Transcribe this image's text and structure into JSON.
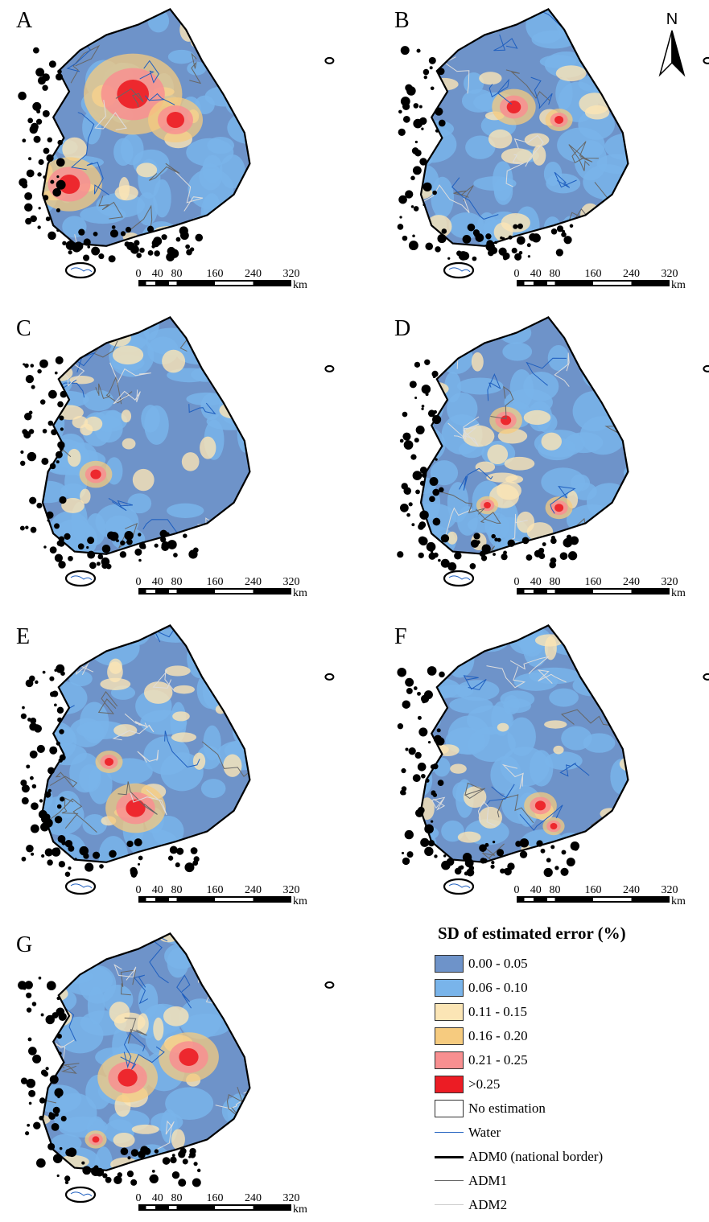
{
  "panels": [
    {
      "label": "A",
      "scheme": [
        "#6e93c9",
        "#79b4ea",
        "#fbe5b5",
        "#f6cb7f",
        "#f88f90",
        "#ec1c24"
      ],
      "hot": [
        [
          0.44,
          0.35,
          1.8
        ],
        [
          0.2,
          0.7,
          1.2
        ],
        [
          0.6,
          0.45,
          1.0
        ]
      ]
    },
    {
      "label": "B",
      "scheme": [
        "#6e93c9",
        "#79b4ea",
        "#fbe5b5",
        "#f6cb7f",
        "#f88f90",
        "#ec1c24"
      ],
      "hot": [
        [
          0.45,
          0.4,
          0.8
        ],
        [
          0.62,
          0.45,
          0.5
        ]
      ]
    },
    {
      "label": "C",
      "scheme": [
        "#6e93c9",
        "#79b4ea",
        "#fbe5b5",
        "#f6cb7f",
        "#f88f90",
        "#ec1c24"
      ],
      "hot": [
        [
          0.3,
          0.63,
          0.6
        ]
      ]
    },
    {
      "label": "D",
      "scheme": [
        "#6e93c9",
        "#79b4ea",
        "#fbe5b5",
        "#f6cb7f",
        "#f88f90",
        "#ec1c24"
      ],
      "hot": [
        [
          0.42,
          0.42,
          0.6
        ],
        [
          0.62,
          0.76,
          0.5
        ],
        [
          0.35,
          0.75,
          0.4
        ]
      ]
    },
    {
      "label": "E",
      "scheme": [
        "#6e93c9",
        "#79b4ea",
        "#fbe5b5",
        "#f6cb7f",
        "#f88f90",
        "#ec1c24"
      ],
      "hot": [
        [
          0.45,
          0.73,
          1.1
        ],
        [
          0.35,
          0.55,
          0.5
        ]
      ]
    },
    {
      "label": "F",
      "scheme": [
        "#6e93c9",
        "#79b4ea",
        "#fbe5b5",
        "#f6cb7f",
        "#f88f90",
        "#ec1c24"
      ],
      "hot": [
        [
          0.55,
          0.72,
          0.6
        ],
        [
          0.6,
          0.8,
          0.4
        ]
      ]
    },
    {
      "label": "G",
      "scheme": [
        "#6e93c9",
        "#79b4ea",
        "#fbe5b5",
        "#f6cb7f",
        "#f88f90",
        "#ec1c24"
      ],
      "hot": [
        [
          0.42,
          0.58,
          1.1
        ],
        [
          0.65,
          0.5,
          1.1
        ],
        [
          0.3,
          0.82,
          0.4
        ]
      ]
    }
  ],
  "scale_bar": {
    "ticks": [
      "0",
      "40",
      "80",
      "160",
      "240",
      "320"
    ],
    "unit": "km"
  },
  "north_arrow": {
    "label": "N"
  },
  "legend": {
    "title": "SD of estimated error (%)",
    "classes": [
      {
        "label": "0.00 - 0.05",
        "color": "#6e93c9"
      },
      {
        "label": "0.06 - 0.10",
        "color": "#79b4ea"
      },
      {
        "label": "0.11 - 0.15",
        "color": "#fbe5b5"
      },
      {
        "label": "0.16 - 0.20",
        "color": "#f6cb7f"
      },
      {
        "label": "0.21 - 0.25",
        "color": "#f88f90"
      },
      {
        "label": ">0.25",
        "color": "#ec1c24"
      },
      {
        "label": "No estimation",
        "color": "#ffffff"
      }
    ],
    "lines": [
      {
        "label": "Water",
        "color": "#1f5fbf"
      },
      {
        "label": "ADM0 (national border)",
        "color": "#000000"
      },
      {
        "label": "ADM1",
        "color": "#666666"
      },
      {
        "label": "ADM2",
        "color": "#cccccc"
      }
    ]
  }
}
